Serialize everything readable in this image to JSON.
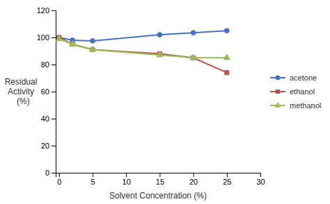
{
  "chart_data": {
    "type": "line",
    "x": [
      0,
      2,
      5,
      15,
      20,
      25
    ],
    "series": [
      {
        "name": "acetone",
        "color": "#4472C4",
        "marker": "circle",
        "values": [
          100,
          98,
          97.5,
          102,
          103.5,
          105
        ]
      },
      {
        "name": "ethanol",
        "color": "#C0504D",
        "marker": "square",
        "values": [
          100,
          95,
          91,
          88,
          85,
          74
        ]
      },
      {
        "name": "methanol",
        "color": "#9BBB59",
        "marker": "triangle",
        "values": [
          99,
          95,
          91,
          87,
          85,
          85
        ]
      }
    ],
    "xlabel": "Solvent Concentration (%)",
    "ylabel": "Residual\nActivity\n  (%)",
    "xlim": [
      -0.5,
      30
    ],
    "ylim": [
      0,
      120
    ],
    "xticks": [
      0,
      5,
      10,
      15,
      20,
      25,
      30
    ],
    "yticks": [
      0,
      20,
      40,
      60,
      80,
      100,
      120
    ],
    "grid": false,
    "legend": "right"
  }
}
